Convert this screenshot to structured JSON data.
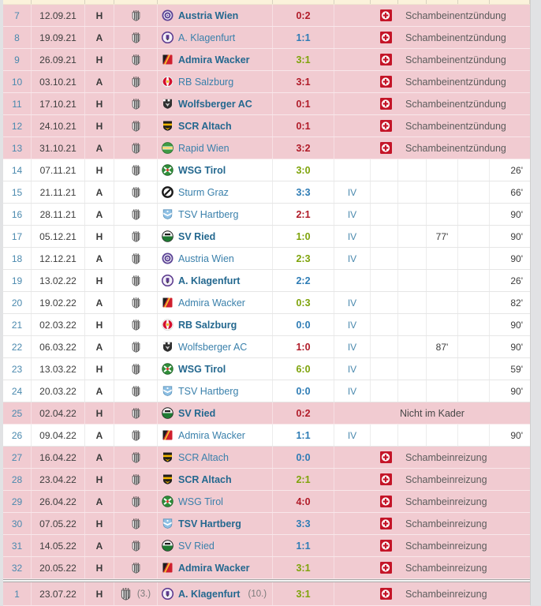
{
  "colors": {
    "row_highlight_pink": "#f1cbd1",
    "win_green": "#7ea30b",
    "draw_blue": "#2e7cb5",
    "loss_red": "#b01b28",
    "link_blue": "#4a89ae",
    "injury_icon_red": "#c41528"
  },
  "injury_names": {
    "first_spell": "Schambeinentzündung",
    "second_spell": "Schambeinreizung",
    "not_in_squad": "Nicht im Kader"
  },
  "rows": [
    {
      "matchday": "7",
      "date": "12.09.21",
      "venue": "H",
      "club_icon": "lask-crest",
      "opponent": "Austria Wien",
      "opponent_icon": "austria-wien-crest",
      "result": "0:2",
      "result_type": "loss",
      "home_bold": true,
      "status": "injury",
      "note": "Schambeinentzündung",
      "highlight": true
    },
    {
      "matchday": "8",
      "date": "19.09.21",
      "venue": "A",
      "club_icon": "lask-crest",
      "opponent": "A. Klagenfurt",
      "opponent_icon": "klagenfurt-crest",
      "result": "1:1",
      "result_type": "draw",
      "home_bold": false,
      "status": "injury",
      "note": "Schambeinentzündung",
      "highlight": true
    },
    {
      "matchday": "9",
      "date": "26.09.21",
      "venue": "H",
      "club_icon": "lask-crest",
      "opponent": "Admira Wacker",
      "opponent_icon": "admira-crest",
      "result": "3:1",
      "result_type": "win",
      "home_bold": true,
      "status": "injury",
      "note": "Schambeinentzündung",
      "highlight": true
    },
    {
      "matchday": "10",
      "date": "03.10.21",
      "venue": "A",
      "club_icon": "lask-crest",
      "opponent": "RB Salzburg",
      "opponent_icon": "salzburg-crest",
      "result": "3:1",
      "result_type": "loss",
      "home_bold": false,
      "status": "injury",
      "note": "Schambeinentzündung",
      "highlight": true
    },
    {
      "matchday": "11",
      "date": "17.10.21",
      "venue": "H",
      "club_icon": "lask-crest",
      "opponent": "Wolfsberger AC",
      "opponent_icon": "wolfsberg-crest",
      "result": "0:1",
      "result_type": "loss",
      "home_bold": true,
      "status": "injury",
      "note": "Schambeinentzündung",
      "highlight": true
    },
    {
      "matchday": "12",
      "date": "24.10.21",
      "venue": "H",
      "club_icon": "lask-crest",
      "opponent": "SCR Altach",
      "opponent_icon": "altach-crest",
      "result": "0:1",
      "result_type": "loss",
      "home_bold": true,
      "status": "injury",
      "note": "Schambeinentzündung",
      "highlight": true
    },
    {
      "matchday": "13",
      "date": "31.10.21",
      "venue": "A",
      "club_icon": "lask-crest",
      "opponent": "Rapid Wien",
      "opponent_icon": "rapid-crest",
      "result": "3:2",
      "result_type": "loss",
      "home_bold": false,
      "status": "injury",
      "note": "Schambeinentzündung",
      "highlight": true
    },
    {
      "matchday": "14",
      "date": "07.11.21",
      "venue": "H",
      "club_icon": "lask-crest",
      "opponent": "WSG Tirol",
      "opponent_icon": "wsg-tirol-crest",
      "result": "3:0",
      "result_type": "win",
      "home_bold": true,
      "status": "played",
      "position": "",
      "yellow_card": "",
      "minutes": "26'",
      "highlight": false
    },
    {
      "matchday": "15",
      "date": "21.11.21",
      "venue": "A",
      "club_icon": "lask-crest",
      "opponent": "Sturm Graz",
      "opponent_icon": "sturm-crest",
      "result": "3:3",
      "result_type": "draw",
      "home_bold": false,
      "status": "played",
      "position": "IV",
      "yellow_card": "",
      "minutes": "66'",
      "highlight": false
    },
    {
      "matchday": "16",
      "date": "28.11.21",
      "venue": "A",
      "club_icon": "lask-crest",
      "opponent": "TSV Hartberg",
      "opponent_icon": "hartberg-crest",
      "result": "2:1",
      "result_type": "loss",
      "home_bold": false,
      "status": "played",
      "position": "IV",
      "yellow_card": "",
      "minutes": "90'",
      "highlight": false
    },
    {
      "matchday": "17",
      "date": "05.12.21",
      "venue": "H",
      "club_icon": "lask-crest",
      "opponent": "SV Ried",
      "opponent_icon": "ried-crest",
      "result": "1:0",
      "result_type": "win",
      "home_bold": true,
      "status": "played",
      "position": "IV",
      "yellow_card": "77'",
      "minutes": "90'",
      "highlight": false
    },
    {
      "matchday": "18",
      "date": "12.12.21",
      "venue": "A",
      "club_icon": "lask-crest",
      "opponent": "Austria Wien",
      "opponent_icon": "austria-wien-crest",
      "result": "2:3",
      "result_type": "win",
      "home_bold": false,
      "status": "played",
      "position": "IV",
      "yellow_card": "",
      "minutes": "90'",
      "highlight": false
    },
    {
      "matchday": "19",
      "date": "13.02.22",
      "venue": "H",
      "club_icon": "lask-crest",
      "opponent": "A. Klagenfurt",
      "opponent_icon": "klagenfurt-crest",
      "result": "2:2",
      "result_type": "draw",
      "home_bold": true,
      "status": "played",
      "position": "",
      "yellow_card": "",
      "minutes": "26'",
      "highlight": false
    },
    {
      "matchday": "20",
      "date": "19.02.22",
      "venue": "A",
      "club_icon": "lask-crest",
      "opponent": "Admira Wacker",
      "opponent_icon": "admira-crest",
      "result": "0:3",
      "result_type": "win",
      "home_bold": false,
      "status": "played",
      "position": "IV",
      "yellow_card": "",
      "minutes": "82'",
      "highlight": false
    },
    {
      "matchday": "21",
      "date": "02.03.22",
      "venue": "H",
      "club_icon": "lask-crest",
      "opponent": "RB Salzburg",
      "opponent_icon": "salzburg-crest",
      "result": "0:0",
      "result_type": "draw",
      "home_bold": true,
      "status": "played",
      "position": "IV",
      "yellow_card": "",
      "minutes": "90'",
      "highlight": false
    },
    {
      "matchday": "22",
      "date": "06.03.22",
      "venue": "A",
      "club_icon": "lask-crest",
      "opponent": "Wolfsberger AC",
      "opponent_icon": "wolfsberg-crest",
      "result": "1:0",
      "result_type": "loss",
      "home_bold": false,
      "status": "played",
      "position": "IV",
      "yellow_card": "87'",
      "minutes": "90'",
      "highlight": false
    },
    {
      "matchday": "23",
      "date": "13.03.22",
      "venue": "H",
      "club_icon": "lask-crest",
      "opponent": "WSG Tirol",
      "opponent_icon": "wsg-tirol-crest",
      "result": "6:0",
      "result_type": "win",
      "home_bold": true,
      "status": "played",
      "position": "IV",
      "yellow_card": "",
      "minutes": "59'",
      "highlight": false
    },
    {
      "matchday": "24",
      "date": "20.03.22",
      "venue": "A",
      "club_icon": "lask-crest",
      "opponent": "TSV Hartberg",
      "opponent_icon": "hartberg-crest",
      "result": "0:0",
      "result_type": "draw",
      "home_bold": false,
      "status": "played",
      "position": "IV",
      "yellow_card": "",
      "minutes": "90'",
      "highlight": false
    },
    {
      "matchday": "25",
      "date": "02.04.22",
      "venue": "H",
      "club_icon": "lask-crest",
      "opponent": "SV Ried",
      "opponent_icon": "ried-crest",
      "result": "0:2",
      "result_type": "loss",
      "home_bold": true,
      "status": "not-in-squad",
      "note": "Nicht im Kader",
      "highlight": true
    },
    {
      "matchday": "26",
      "date": "09.04.22",
      "venue": "A",
      "club_icon": "lask-crest",
      "opponent": "Admira Wacker",
      "opponent_icon": "admira-crest",
      "result": "1:1",
      "result_type": "draw",
      "home_bold": false,
      "status": "played",
      "position": "IV",
      "yellow_card": "",
      "minutes": "90'",
      "highlight": false
    },
    {
      "matchday": "27",
      "date": "16.04.22",
      "venue": "A",
      "club_icon": "lask-crest",
      "opponent": "SCR Altach",
      "opponent_icon": "altach-crest",
      "result": "0:0",
      "result_type": "draw",
      "home_bold": false,
      "status": "injury",
      "note": "Schambeinreizung",
      "highlight": true
    },
    {
      "matchday": "28",
      "date": "23.04.22",
      "venue": "H",
      "club_icon": "lask-crest",
      "opponent": "SCR Altach",
      "opponent_icon": "altach-crest",
      "result": "2:1",
      "result_type": "win",
      "home_bold": true,
      "status": "injury",
      "note": "Schambeinreizung",
      "highlight": true
    },
    {
      "matchday": "29",
      "date": "26.04.22",
      "venue": "A",
      "club_icon": "lask-crest",
      "opponent": "WSG Tirol",
      "opponent_icon": "wsg-tirol-crest",
      "result": "4:0",
      "result_type": "loss",
      "home_bold": false,
      "status": "injury",
      "note": "Schambeinreizung",
      "highlight": true
    },
    {
      "matchday": "30",
      "date": "07.05.22",
      "venue": "H",
      "club_icon": "lask-crest",
      "opponent": "TSV Hartberg",
      "opponent_icon": "hartberg-crest",
      "result": "3:3",
      "result_type": "draw",
      "home_bold": true,
      "status": "injury",
      "note": "Schambeinreizung",
      "highlight": true
    },
    {
      "matchday": "31",
      "date": "14.05.22",
      "venue": "A",
      "club_icon": "lask-crest",
      "opponent": "SV Ried",
      "opponent_icon": "ried-crest",
      "result": "1:1",
      "result_type": "draw",
      "home_bold": false,
      "status": "injury",
      "note": "Schambeinreizung",
      "highlight": true
    },
    {
      "matchday": "32",
      "date": "20.05.22",
      "venue": "H",
      "club_icon": "lask-crest",
      "opponent": "Admira Wacker",
      "opponent_icon": "admira-crest",
      "result": "3:1",
      "result_type": "win",
      "home_bold": true,
      "status": "injury",
      "note": "Schambeinreizung",
      "highlight": true
    },
    {
      "matchday": "1",
      "date": "23.07.22",
      "venue": "H",
      "club_icon": "lask-crest",
      "club_rank": "(3.)",
      "opponent": "A. Klagenfurt",
      "opponent_rank": "(10.)",
      "opponent_icon": "klagenfurt-crest",
      "result": "3:1",
      "result_type": "win",
      "home_bold": true,
      "status": "injury",
      "note": "Schambeinreizung",
      "highlight": true,
      "new_season_separator": true
    }
  ]
}
